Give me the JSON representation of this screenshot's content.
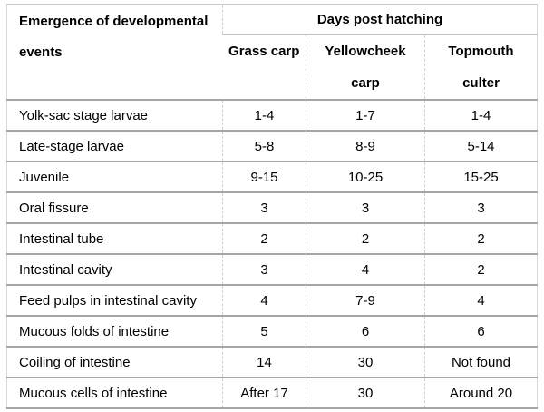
{
  "table": {
    "corner_header": "Emergence of developmental events",
    "group_header": "Days post hatching",
    "columns": [
      "Grass carp",
      "Yellowcheek carp",
      "Topmouth culter"
    ],
    "rows": [
      {
        "label": "Yolk-sac stage larvae",
        "values": [
          "1-4",
          "1-7",
          "1-4"
        ]
      },
      {
        "label": "Late-stage larvae",
        "values": [
          "5-8",
          "8-9",
          "5-14"
        ]
      },
      {
        "label": "Juvenile",
        "values": [
          "9-15",
          "10-25",
          "15-25"
        ]
      },
      {
        "label": "Oral fissure",
        "values": [
          "3",
          "3",
          "3"
        ]
      },
      {
        "label": "Intestinal tube",
        "values": [
          "2",
          "2",
          "2"
        ]
      },
      {
        "label": "Intestinal cavity",
        "values": [
          "3",
          "4",
          "2"
        ]
      },
      {
        "label": "Feed pulps in intestinal cavity",
        "values": [
          "4",
          "7-9",
          "4"
        ]
      },
      {
        "label": "Mucous folds of intestine",
        "values": [
          "5",
          "6",
          "6"
        ]
      },
      {
        "label": "Coiling of intestine",
        "values": [
          "14",
          "30",
          "Not found"
        ]
      },
      {
        "label": "Mucous cells of intestine",
        "values": [
          "After 17",
          "30",
          "Around 20"
        ]
      }
    ],
    "colors": {
      "text": "#000000",
      "background": "#ffffff",
      "row_rule": "#a6a6a6",
      "header_rule": "#c9c9c9",
      "column_rule_dashed": "#cfcfcf",
      "outer_side_rule": "#d9d9d9"
    }
  }
}
